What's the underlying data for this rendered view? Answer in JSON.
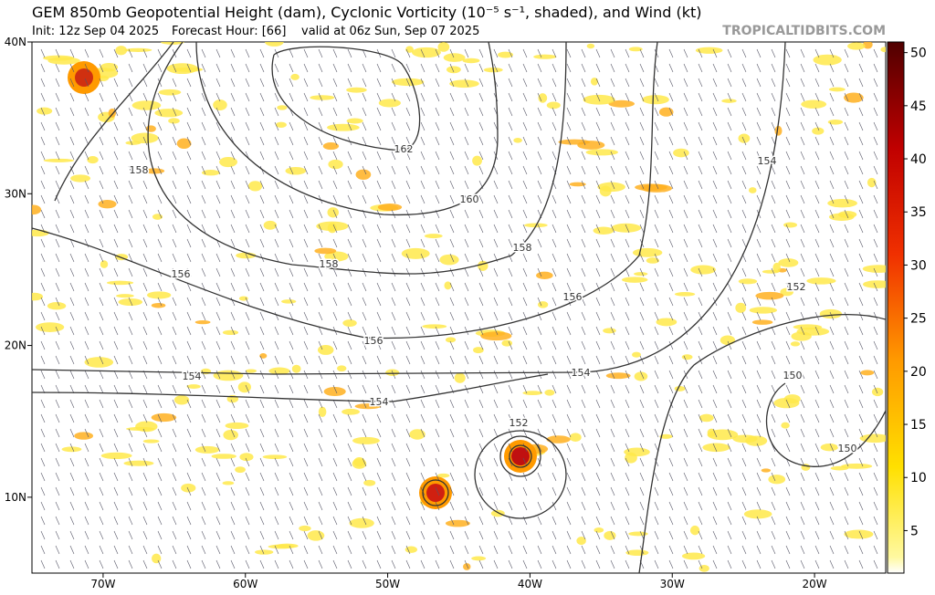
{
  "header": {
    "title": "GEM 850mb Geopotential Height (dam), Cyclonic Vorticity (10⁻⁵ s⁻¹, shaded), and Wind (kt)",
    "init": "Init: 12z Sep 04 2025",
    "forecast_hour": "Forecast Hour: [66]",
    "valid": "valid at 06z Sun, Sep 07 2025",
    "source": "TROPICALTIDBITS.COM"
  },
  "map": {
    "lonlim": [
      -75,
      -15
    ],
    "latlim": [
      5,
      40
    ],
    "lonticks": [
      {
        "value": -70,
        "label": "70W"
      },
      {
        "value": -60,
        "label": "60W"
      },
      {
        "value": -50,
        "label": "50W"
      },
      {
        "value": -40,
        "label": "40W"
      },
      {
        "value": -30,
        "label": "30W"
      },
      {
        "value": -20,
        "label": "20W"
      }
    ],
    "latticks": [
      {
        "value": 40,
        "label": "40N"
      },
      {
        "value": 30,
        "label": "30N"
      },
      {
        "value": 20,
        "label": "20N"
      },
      {
        "value": 10,
        "label": "10N"
      }
    ],
    "contour_labels": [
      162,
      160,
      158,
      158,
      158,
      156,
      156,
      156,
      154,
      154,
      154,
      154,
      152,
      152,
      150,
      150
    ]
  },
  "colorbar": {
    "lim": [
      1,
      51
    ],
    "ticks": [
      5,
      10,
      15,
      20,
      25,
      30,
      35,
      40,
      45,
      50
    ]
  }
}
